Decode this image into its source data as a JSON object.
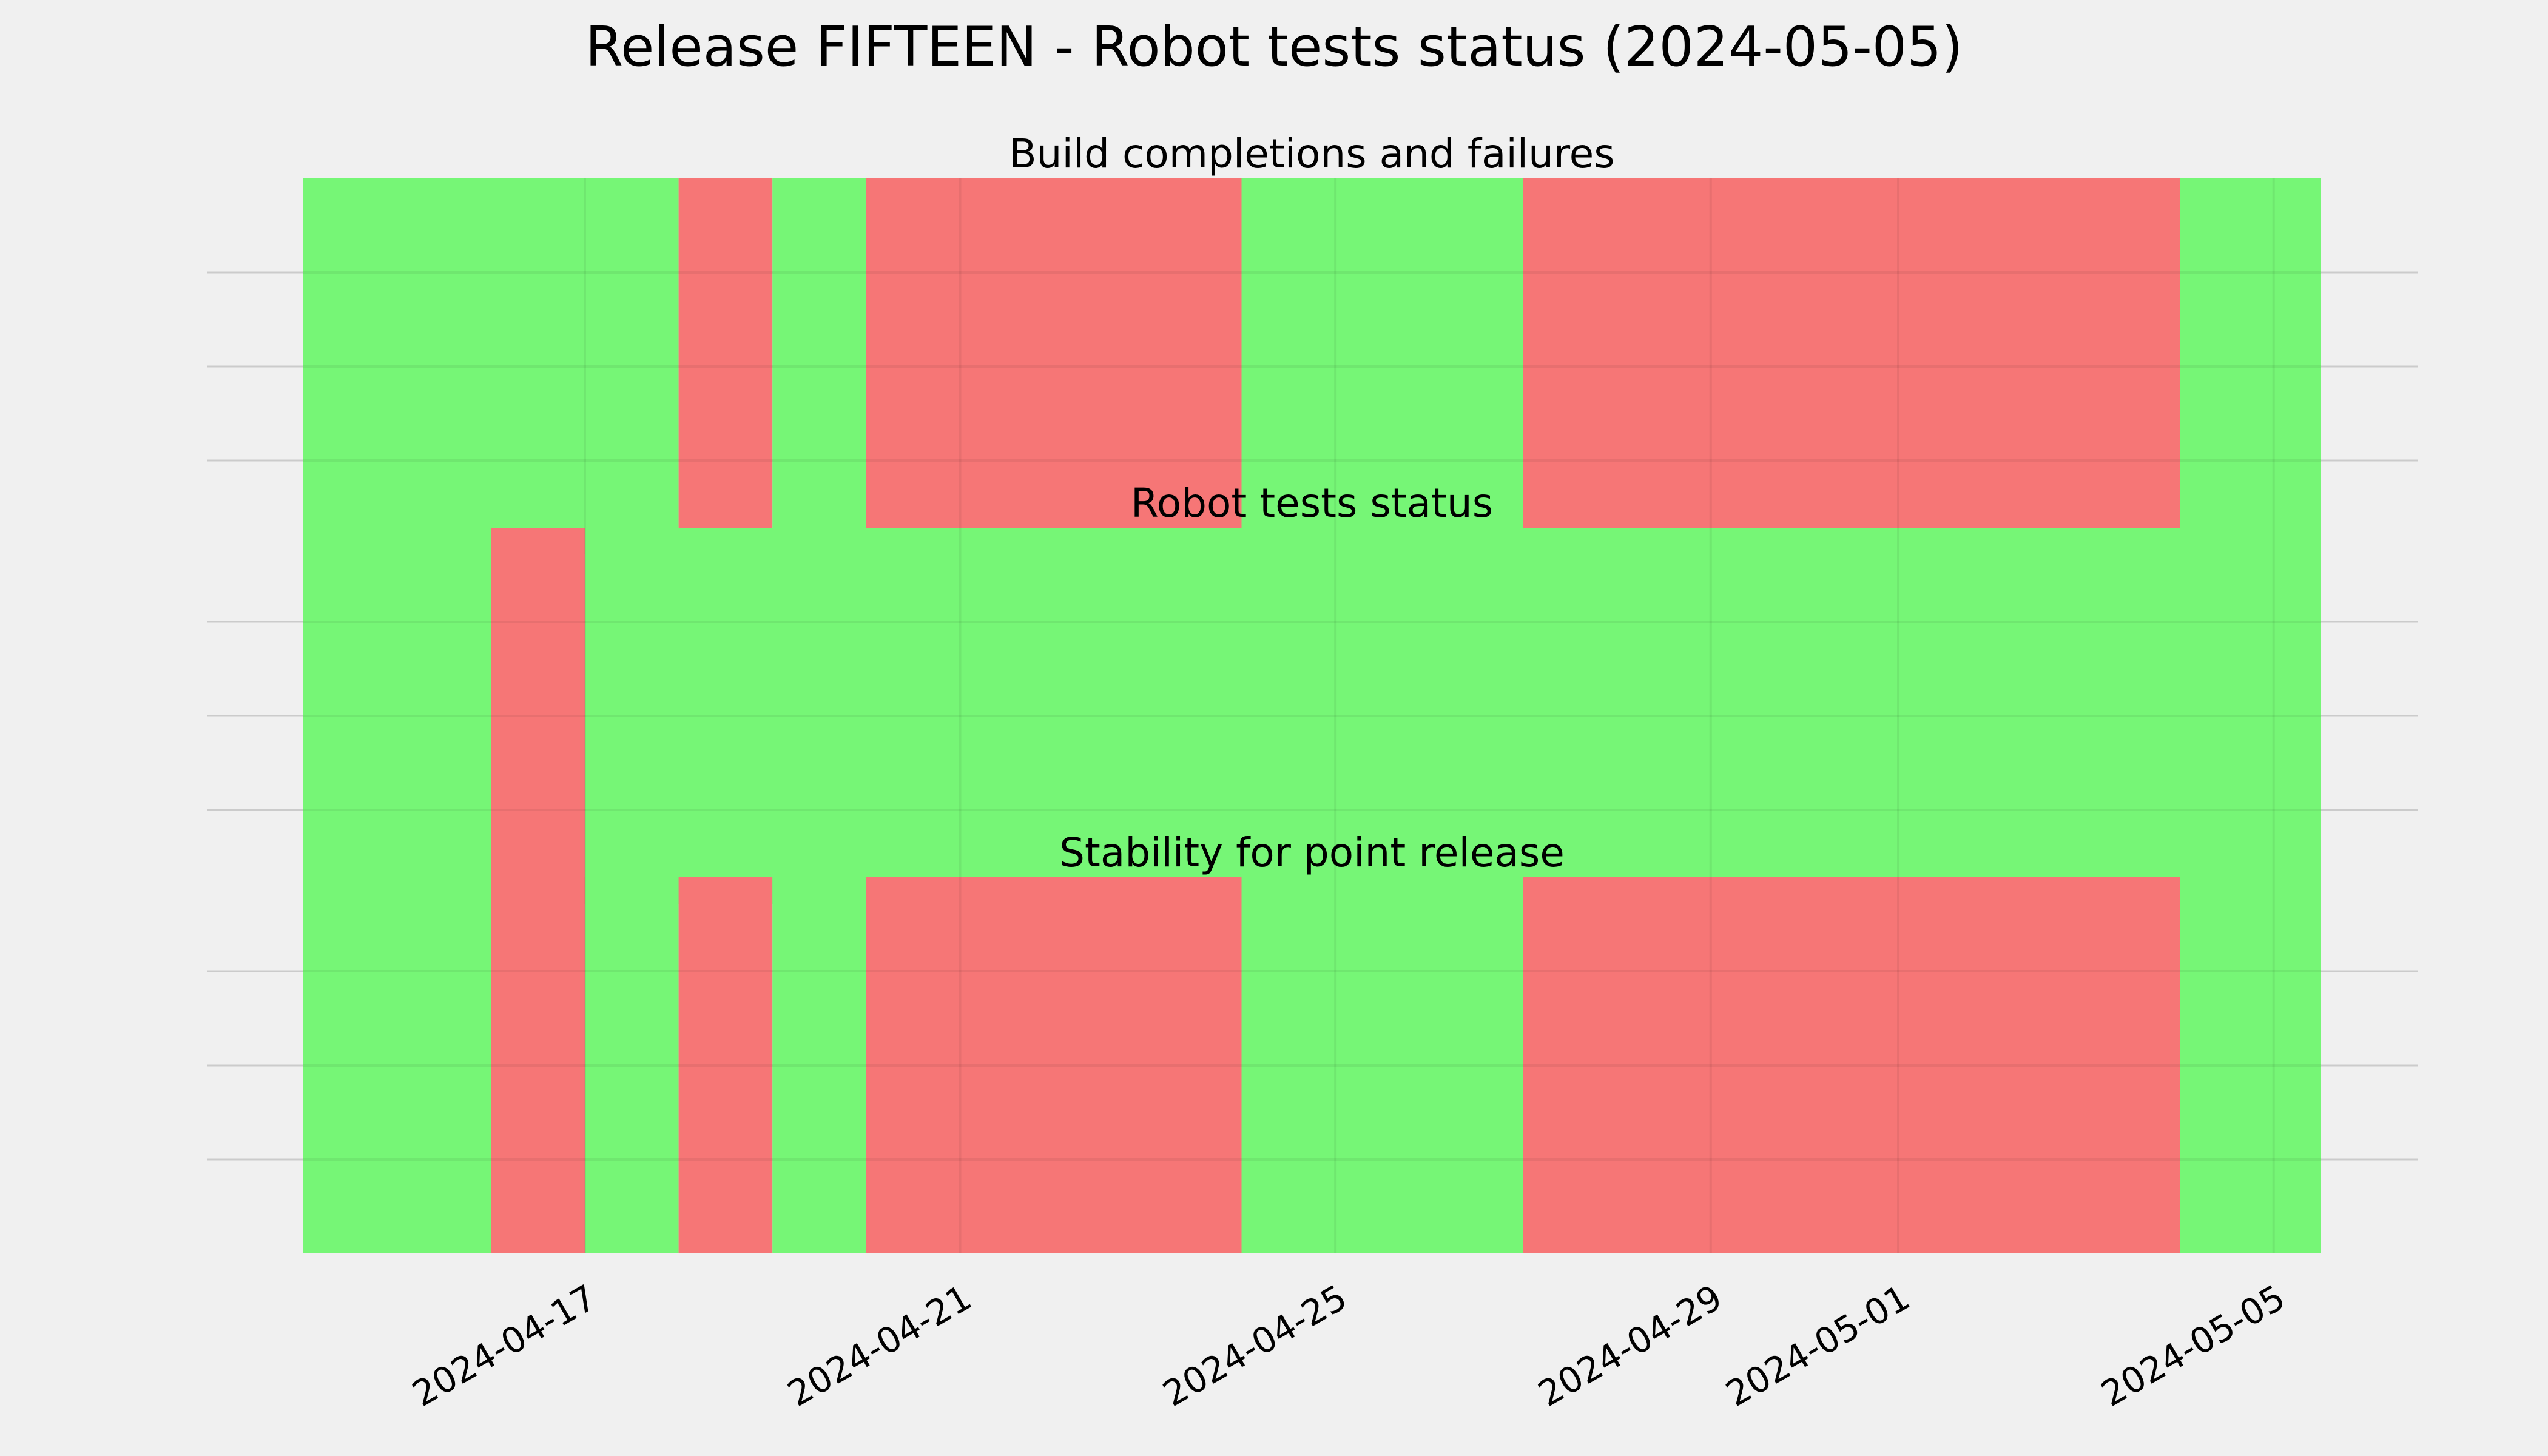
{
  "figure": {
    "title": "Release FIFTEEN - Robot tests status (2024-05-05)"
  },
  "colors": {
    "pass": "#76f676",
    "fail": "#f67676",
    "background": "#f0f0f0",
    "grid": "#cbcbcb"
  },
  "chart_data": [
    {
      "type": "timeline",
      "title": "Build completions and failures",
      "xlim": [
        "2024-04-14",
        "2024-05-05T12:00"
      ],
      "grid": true,
      "segments": [
        {
          "start": "2024-04-14",
          "end": "2024-04-18",
          "status": "pass"
        },
        {
          "start": "2024-04-18",
          "end": "2024-04-19",
          "status": "fail"
        },
        {
          "start": "2024-04-19",
          "end": "2024-04-20",
          "status": "pass"
        },
        {
          "start": "2024-04-20",
          "end": "2024-04-24",
          "status": "fail"
        },
        {
          "start": "2024-04-24",
          "end": "2024-04-27",
          "status": "pass"
        },
        {
          "start": "2024-04-27",
          "end": "2024-05-04",
          "status": "fail"
        },
        {
          "start": "2024-05-04",
          "end": "2024-05-05T12:00",
          "status": "pass"
        }
      ]
    },
    {
      "type": "timeline",
      "title": "Robot tests status",
      "xlim": [
        "2024-04-14",
        "2024-05-05T12:00"
      ],
      "grid": true,
      "segments": [
        {
          "start": "2024-04-14",
          "end": "2024-04-16",
          "status": "pass"
        },
        {
          "start": "2024-04-16",
          "end": "2024-04-17",
          "status": "fail"
        },
        {
          "start": "2024-04-17",
          "end": "2024-05-05T12:00",
          "status": "pass"
        }
      ]
    },
    {
      "type": "timeline",
      "title": "Stability for point release",
      "xlim": [
        "2024-04-14",
        "2024-05-05T12:00"
      ],
      "grid": true,
      "segments": [
        {
          "start": "2024-04-14",
          "end": "2024-04-16",
          "status": "pass"
        },
        {
          "start": "2024-04-16",
          "end": "2024-04-17",
          "status": "fail"
        },
        {
          "start": "2024-04-17",
          "end": "2024-04-18",
          "status": "pass"
        },
        {
          "start": "2024-04-18",
          "end": "2024-04-19",
          "status": "fail"
        },
        {
          "start": "2024-04-19",
          "end": "2024-04-20",
          "status": "pass"
        },
        {
          "start": "2024-04-20",
          "end": "2024-04-24",
          "status": "fail"
        },
        {
          "start": "2024-04-24",
          "end": "2024-04-27",
          "status": "pass"
        },
        {
          "start": "2024-04-27",
          "end": "2024-05-04",
          "status": "fail"
        },
        {
          "start": "2024-05-04",
          "end": "2024-05-05T12:00",
          "status": "pass"
        }
      ]
    }
  ],
  "x_ticks": [
    "2024-04-17",
    "2024-04-21",
    "2024-04-25",
    "2024-04-29",
    "2024-05-01",
    "2024-05-05"
  ]
}
